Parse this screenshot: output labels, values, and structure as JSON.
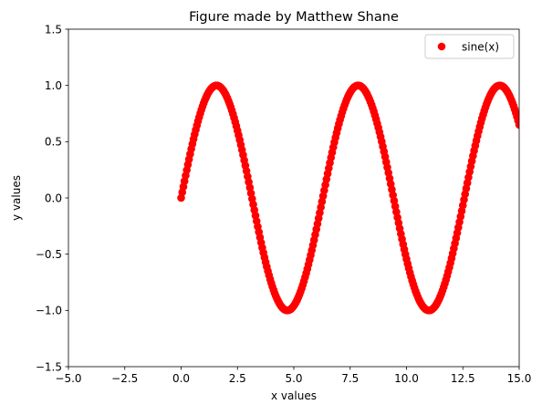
{
  "chart_data": {
    "type": "scatter",
    "title": "Figure made by Matthew Shane",
    "xlabel": "x values",
    "ylabel": "y values",
    "xlim": [
      -5.0,
      15.0
    ],
    "ylim": [
      -1.5,
      1.5
    ],
    "xticks": [
      -5.0,
      -2.5,
      0.0,
      2.5,
      5.0,
      7.5,
      10.0,
      12.5,
      15.0
    ],
    "xtick_labels": [
      "−5.0",
      "−2.5",
      "0.0",
      "2.5",
      "5.0",
      "7.5",
      "10.0",
      "12.5",
      "15.0"
    ],
    "yticks": [
      -1.5,
      -1.0,
      -0.5,
      0.0,
      0.5,
      1.0,
      1.5
    ],
    "ytick_labels": [
      "−1.5",
      "−1.0",
      "−0.5",
      "0.0",
      "0.5",
      "1.0",
      "1.5"
    ],
    "grid": false,
    "legend_position": "top-right",
    "series": [
      {
        "name": "sine(x)",
        "color": "#ff0000",
        "marker": "circle",
        "function": "sin(x)",
        "x_range": [
          0.0,
          15.0
        ],
        "x_step": 0.05
      }
    ]
  }
}
